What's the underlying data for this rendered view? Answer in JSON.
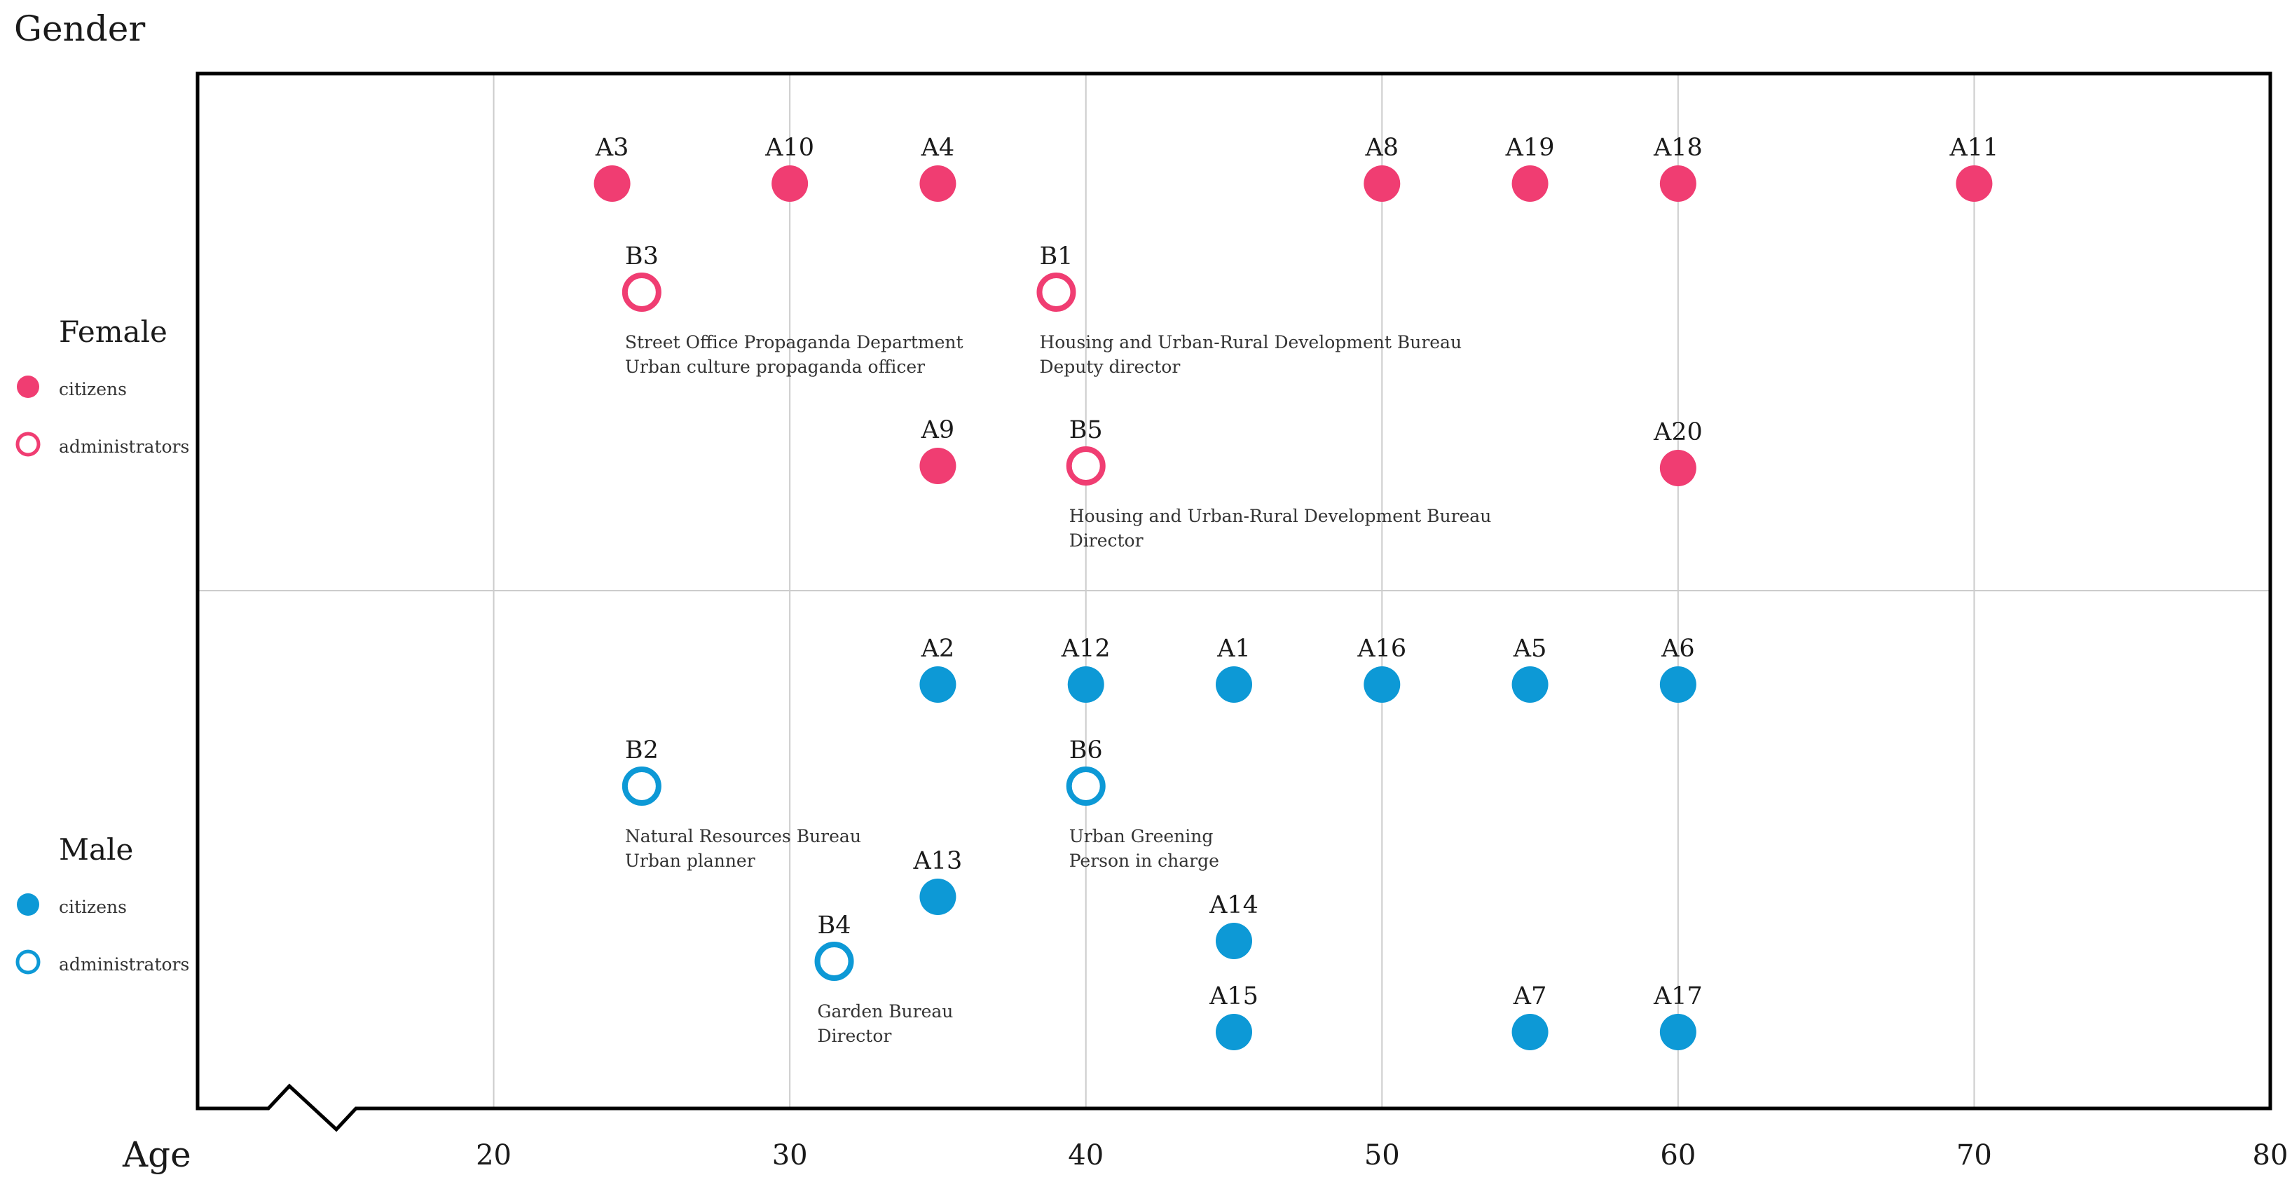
{
  "colors": {
    "female": "#f03d72",
    "male": "#0d99d6",
    "grid": "#cccccc",
    "frame": "#000000"
  },
  "chart_data": {
    "type": "scatter",
    "ylabel": "Gender",
    "xlabel": "Age",
    "xlim": [
      10,
      80
    ],
    "xticks": [
      20,
      30,
      40,
      50,
      60,
      70,
      80
    ],
    "axis_break": true,
    "grid": true,
    "rows": [
      "Female",
      "Male"
    ],
    "legend": [
      {
        "group": "Female",
        "title": "Female",
        "items": [
          {
            "type": "citizens",
            "label": "citizens"
          },
          {
            "type": "administrators",
            "label": "administrators"
          }
        ]
      },
      {
        "group": "Male",
        "title": "Male",
        "items": [
          {
            "type": "citizens",
            "label": "citizens"
          },
          {
            "type": "administrators",
            "label": "administrators"
          }
        ]
      }
    ],
    "points": [
      {
        "id": "A3",
        "gender": "Female",
        "type": "citizens",
        "age": 24
      },
      {
        "id": "A10",
        "gender": "Female",
        "type": "citizens",
        "age": 30
      },
      {
        "id": "A4",
        "gender": "Female",
        "type": "citizens",
        "age": 35
      },
      {
        "id": "A8",
        "gender": "Female",
        "type": "citizens",
        "age": 50
      },
      {
        "id": "A19",
        "gender": "Female",
        "type": "citizens",
        "age": 55
      },
      {
        "id": "A18",
        "gender": "Female",
        "type": "citizens",
        "age": 60
      },
      {
        "id": "A11",
        "gender": "Female",
        "type": "citizens",
        "age": 70
      },
      {
        "id": "B3",
        "gender": "Female",
        "type": "administrators",
        "age": 25,
        "note": [
          "Street Office Propaganda Department",
          "Urban culture propaganda officer"
        ]
      },
      {
        "id": "B1",
        "gender": "Female",
        "type": "administrators",
        "age": 39,
        "note": [
          "Housing and Urban-Rural Development Bureau",
          "Deputy director"
        ]
      },
      {
        "id": "A9",
        "gender": "Female",
        "type": "citizens",
        "age": 35
      },
      {
        "id": "B5",
        "gender": "Female",
        "type": "administrators",
        "age": 40,
        "note": [
          "Housing and Urban-Rural Development Bureau",
          "Director"
        ]
      },
      {
        "id": "A20",
        "gender": "Female",
        "type": "citizens",
        "age": 60
      },
      {
        "id": "A2",
        "gender": "Male",
        "type": "citizens",
        "age": 35
      },
      {
        "id": "A12",
        "gender": "Male",
        "type": "citizens",
        "age": 40
      },
      {
        "id": "A1",
        "gender": "Male",
        "type": "citizens",
        "age": 45
      },
      {
        "id": "A16",
        "gender": "Male",
        "type": "citizens",
        "age": 50
      },
      {
        "id": "A5",
        "gender": "Male",
        "type": "citizens",
        "age": 55
      },
      {
        "id": "A6",
        "gender": "Male",
        "type": "citizens",
        "age": 60
      },
      {
        "id": "B2",
        "gender": "Male",
        "type": "administrators",
        "age": 25,
        "note": [
          "Natural Resources Bureau",
          "Urban planner"
        ]
      },
      {
        "id": "B6",
        "gender": "Male",
        "type": "administrators",
        "age": 40,
        "note": [
          "Urban Greening",
          "Person in charge"
        ]
      },
      {
        "id": "A13",
        "gender": "Male",
        "type": "citizens",
        "age": 35
      },
      {
        "id": "A14",
        "gender": "Male",
        "type": "citizens",
        "age": 45
      },
      {
        "id": "B4",
        "gender": "Male",
        "type": "administrators",
        "age": 31.5,
        "note": [
          "Garden Bureau",
          "Director"
        ]
      },
      {
        "id": "A15",
        "gender": "Male",
        "type": "citizens",
        "age": 45
      },
      {
        "id": "A7",
        "gender": "Male",
        "type": "citizens",
        "age": 55
      },
      {
        "id": "A17",
        "gender": "Male",
        "type": "citizens",
        "age": 60
      }
    ]
  }
}
